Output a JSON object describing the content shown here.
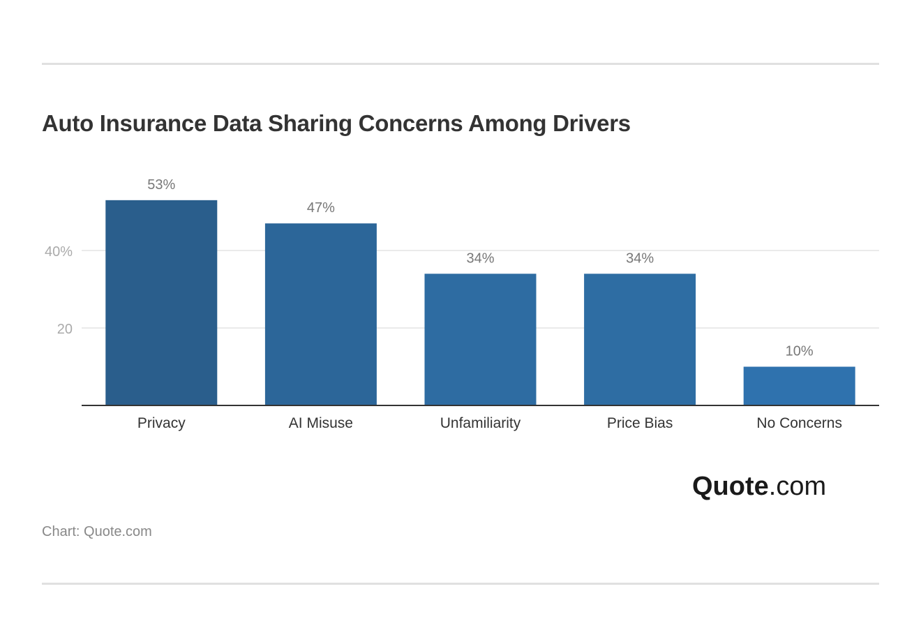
{
  "chart_data": {
    "type": "bar",
    "title": "Auto Insurance Data Sharing Concerns Among Drivers",
    "categories": [
      "Privacy",
      "AI Misuse",
      "Unfamiliarity",
      "Price Bias",
      "No Concerns"
    ],
    "values": [
      53,
      47,
      34,
      34,
      10
    ],
    "data_labels": [
      "53%",
      "47%",
      "34%",
      "34%",
      "10%"
    ],
    "bar_colors": [
      "#2a5e8c",
      "#2c6699",
      "#2e6ca2",
      "#2e6da3",
      "#2f72ae"
    ],
    "yticks": [
      {
        "value": 20,
        "label": "20"
      },
      {
        "value": 40,
        "label": "40%"
      }
    ],
    "ylim": [
      0,
      55
    ],
    "xlabel": "",
    "ylabel": "",
    "grid": true,
    "legend": "none"
  },
  "source": "Chart: Quote.com",
  "logo": {
    "bold": "Quote",
    "rest": ".com"
  }
}
